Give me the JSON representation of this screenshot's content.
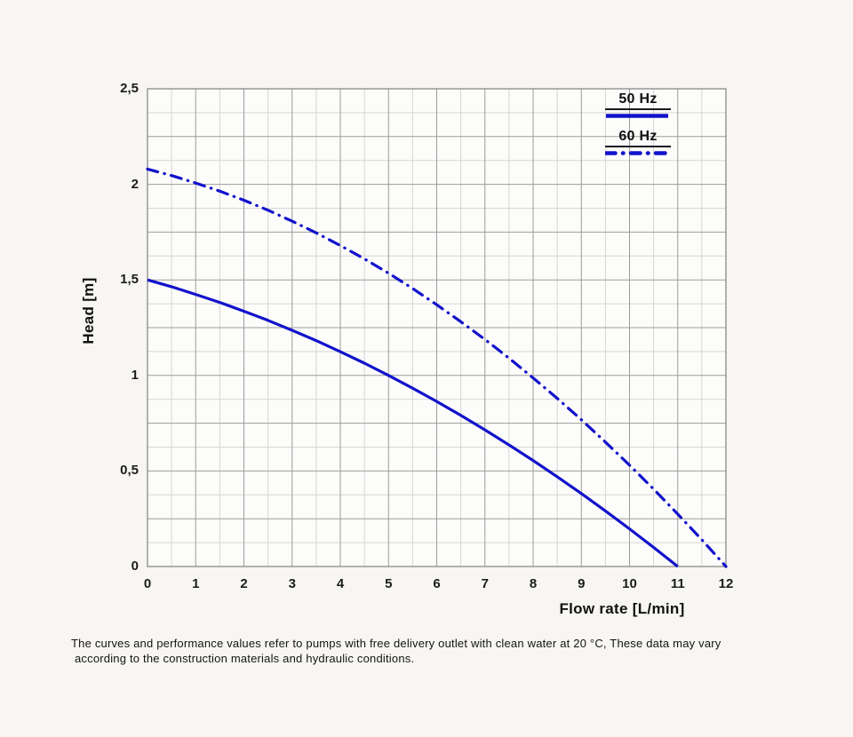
{
  "chart": {
    "y_axis": {
      "title": "Head [m]",
      "tick_labels": [
        "2,5",
        "2",
        "1,5",
        "1",
        "0,5",
        "0"
      ],
      "tick_values": [
        2.5,
        2,
        1.5,
        1,
        0.5,
        0
      ]
    },
    "x_axis": {
      "title": "Flow rate [L/min]",
      "tick_labels": [
        "0",
        "1",
        "2",
        "3",
        "4",
        "5",
        "6",
        "7",
        "8",
        "9",
        "10",
        "11",
        "12"
      ],
      "tick_values": [
        0,
        1,
        2,
        3,
        4,
        5,
        6,
        7,
        8,
        9,
        10,
        11,
        12
      ]
    },
    "legend": {
      "items": [
        {
          "label": "50 Hz",
          "line_style": "solid"
        },
        {
          "label": "60 Hz",
          "line_style": "dash-dot"
        }
      ]
    },
    "colors": {
      "curve": "#1212cc",
      "grid_minor": "#d6d5d3",
      "grid_major": "#9d9c9a",
      "border": "#8a8988",
      "plot_bg": "#fcfcfb",
      "page_bg": "#f7f6f3"
    }
  },
  "chart_data": {
    "type": "line",
    "xlabel": "Flow rate [L/min]",
    "ylabel": "Head [m]",
    "xlim": [
      0,
      12
    ],
    "ylim": [
      0,
      2.5
    ],
    "grid": {
      "x_minor_step": 0.5,
      "x_major_step": 1,
      "y_minor_step": 0.125,
      "y_major_step": 0.25
    },
    "legend_position": "top-right",
    "series": [
      {
        "name": "50 Hz",
        "style": "solid",
        "color": "#1212cc",
        "points": [
          [
            0,
            1.5
          ],
          [
            0.5,
            1.464
          ],
          [
            1,
            1.424
          ],
          [
            1.5,
            1.382
          ],
          [
            2,
            1.336
          ],
          [
            2.5,
            1.288
          ],
          [
            3,
            1.236
          ],
          [
            3.5,
            1.182
          ],
          [
            4,
            1.124
          ],
          [
            4.5,
            1.064
          ],
          [
            5,
            1.0
          ],
          [
            5.5,
            0.933
          ],
          [
            6,
            0.864
          ],
          [
            6.5,
            0.791
          ],
          [
            7,
            0.715
          ],
          [
            7.5,
            0.636
          ],
          [
            8,
            0.555
          ],
          [
            8.5,
            0.47
          ],
          [
            9,
            0.382
          ],
          [
            9.5,
            0.291
          ],
          [
            10,
            0.197
          ],
          [
            10.5,
            0.1
          ],
          [
            11,
            0
          ]
        ]
      },
      {
        "name": "60 Hz",
        "style": "dash-dot",
        "color": "#1212cc",
        "points": [
          [
            0,
            2.08
          ],
          [
            0.5,
            2.046
          ],
          [
            1,
            2.007
          ],
          [
            1.5,
            1.964
          ],
          [
            2,
            1.917
          ],
          [
            2.5,
            1.865
          ],
          [
            3,
            1.807
          ],
          [
            3.5,
            1.746
          ],
          [
            4,
            1.68
          ],
          [
            4.5,
            1.61
          ],
          [
            5,
            1.535
          ],
          [
            5.5,
            1.455
          ],
          [
            6,
            1.37
          ],
          [
            6.5,
            1.281
          ],
          [
            7,
            1.188
          ],
          [
            7.5,
            1.09
          ],
          [
            8,
            0.987
          ],
          [
            8.5,
            0.88
          ],
          [
            9,
            0.768
          ],
          [
            9.5,
            0.651
          ],
          [
            10,
            0.53
          ],
          [
            10.5,
            0.405
          ],
          [
            11,
            0.274
          ],
          [
            11.5,
            0.14
          ],
          [
            12,
            0
          ]
        ]
      }
    ]
  },
  "footnote": {
    "line1": "The curves and performance values refer to pumps with free delivery outlet with clean water at 20 °C, These data may vary",
    "line2": "according to the construction materials and hydraulic conditions."
  }
}
